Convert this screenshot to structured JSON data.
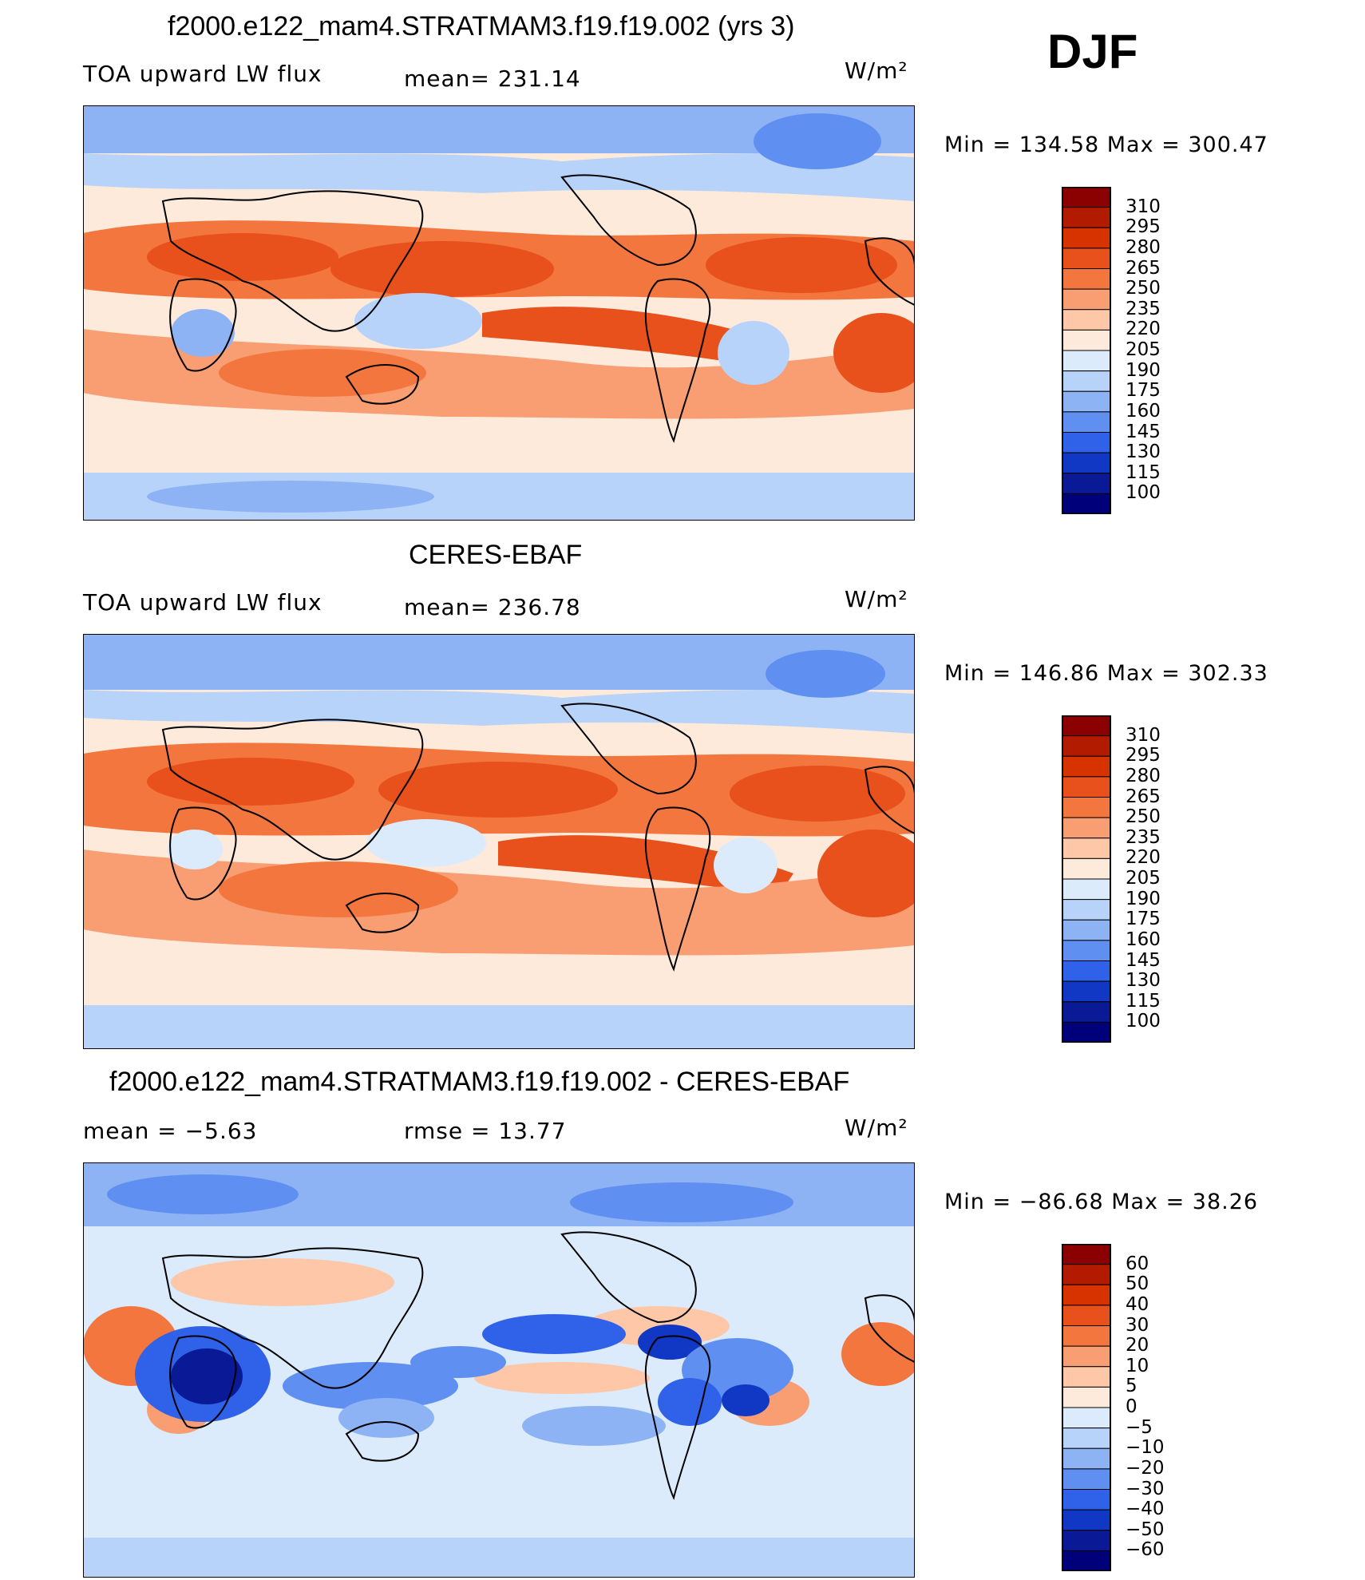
{
  "season": "DJF",
  "panels": [
    {
      "title": "f2000.e122_mam4.STRATMAM3.f19.f19.002 (yrs 3)",
      "left_label": "TOA upward LW flux",
      "center_label": "mean= 231.14",
      "units": "W/m²",
      "minmax": "Min  =  134.58  Max  =  300.47"
    },
    {
      "title": "CERES-EBAF",
      "left_label": "TOA upward LW flux",
      "center_label": "mean= 236.78",
      "units": "W/m²",
      "minmax": "Min  =  146.86  Max  =  302.33"
    },
    {
      "title": "f2000.e122_mam4.STRATMAM3.f19.f19.002 - CERES-EBAF",
      "left_label": "mean  =    −5.63",
      "center_label": "rmse  =    13.77",
      "units": "W/m²",
      "minmax": "Min  =  −86.68  Max  =    38.26"
    }
  ],
  "chart_data": [
    {
      "type": "heatmap",
      "title": "f2000.e122_mam4.STRATMAM3.f19.f19.002 (yrs 3)",
      "field": "TOA upward LW flux",
      "units": "W/m²",
      "mean": 231.14,
      "min": 134.58,
      "max": 300.47,
      "colorbar_levels": [
        "310",
        "295",
        "280",
        "265",
        "250",
        "235",
        "220",
        "205",
        "190",
        "175",
        "160",
        "145",
        "130",
        "115",
        "100"
      ]
    },
    {
      "type": "heatmap",
      "title": "CERES-EBAF",
      "field": "TOA upward LW flux",
      "units": "W/m²",
      "mean": 236.78,
      "min": 146.86,
      "max": 302.33,
      "colorbar_levels": [
        "310",
        "295",
        "280",
        "265",
        "250",
        "235",
        "220",
        "205",
        "190",
        "175",
        "160",
        "145",
        "130",
        "115",
        "100"
      ]
    },
    {
      "type": "heatmap",
      "title": "f2000.e122_mam4.STRATMAM3.f19.f19.002 - CERES-EBAF",
      "units": "W/m²",
      "mean": -5.63,
      "rmse": 13.77,
      "min": -86.68,
      "max": 38.26,
      "colorbar_levels": [
        "60",
        "50",
        "40",
        "30",
        "20",
        "10",
        "5",
        "0",
        "−5",
        "−10",
        "−20",
        "−30",
        "−40",
        "−50",
        "−60"
      ]
    }
  ],
  "colorbar_colors": [
    "#8b0000",
    "#b31b00",
    "#d63300",
    "#e8501c",
    "#f4763f",
    "#f99e72",
    "#fdc7a8",
    "#fdeadb",
    "#dbebfb",
    "#b8d3fa",
    "#8db3f5",
    "#5f8ff0",
    "#2f62e8",
    "#1038c4",
    "#0a1a96",
    "#00007a"
  ]
}
